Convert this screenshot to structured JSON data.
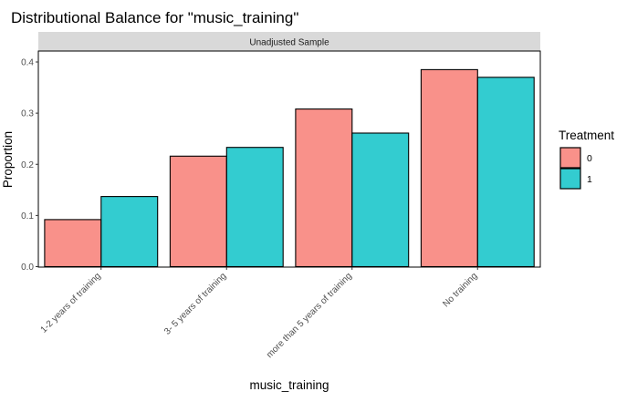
{
  "chart_data": {
    "type": "bar",
    "title": "Distributional Balance for \"music_training\"",
    "facet_label": "Unadjusted Sample",
    "xlabel": "music_training",
    "ylabel": "Proportion",
    "categories": [
      "1-2 years of training",
      "3- 5 years of training",
      "more than 5 years of training",
      "No training"
    ],
    "series": [
      {
        "name": "0",
        "values": [
          0.092,
          0.216,
          0.308,
          0.385
        ],
        "color": "#F8766D"
      },
      {
        "name": "1",
        "values": [
          0.137,
          0.233,
          0.261,
          0.37
        ],
        "color": "#00BFC4"
      }
    ],
    "ylim": [
      0,
      0.4
    ],
    "yticks": [
      "0.0",
      "0.1",
      "0.2",
      "0.3",
      "0.4"
    ],
    "legend": {
      "title": "Treatment",
      "entries": [
        "0",
        "1"
      ],
      "position": "right"
    },
    "grid": false,
    "bar_alpha": 0.8
  }
}
